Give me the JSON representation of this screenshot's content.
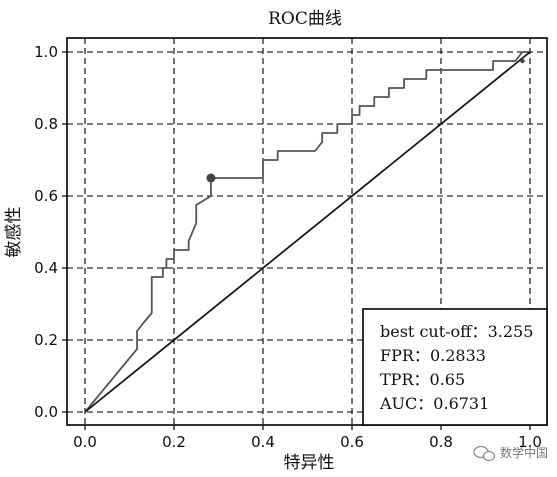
{
  "chart_data": {
    "type": "line",
    "title": "ROC曲线",
    "xlabel": "特异性",
    "ylabel": "敏感性",
    "xlim": [
      0,
      1
    ],
    "ylim": [
      0,
      1
    ],
    "x_ticks": [
      "0.0",
      "0.2",
      "0.4",
      "0.6",
      "0.8",
      "1.0"
    ],
    "y_ticks": [
      "0.0",
      "0.2",
      "0.4",
      "0.6",
      "0.8",
      "1.0"
    ],
    "grid": true,
    "grid_style": "dashed",
    "series": [
      {
        "color": "#555555",
        "x": [
          0.0,
          0.117,
          0.117,
          0.133,
          0.15,
          0.15,
          0.175,
          0.175,
          0.183,
          0.183,
          0.2,
          0.2,
          0.233,
          0.233,
          0.25,
          0.25,
          0.283,
          0.283,
          0.283,
          0.3,
          0.4,
          0.4,
          0.433,
          0.433,
          0.517,
          0.533,
          0.533,
          0.567,
          0.567,
          0.6,
          0.6,
          0.617,
          0.617,
          0.65,
          0.65,
          0.683,
          0.683,
          0.717,
          0.717,
          0.75,
          0.767,
          0.767,
          0.817,
          0.817,
          0.85,
          0.85,
          0.917,
          0.917,
          0.967,
          0.967,
          0.983,
          1.0
        ],
        "y": [
          0.0,
          0.175,
          0.225,
          0.25,
          0.275,
          0.375,
          0.375,
          0.4,
          0.4,
          0.425,
          0.425,
          0.45,
          0.45,
          0.475,
          0.525,
          0.575,
          0.6,
          0.65,
          0.65,
          0.65,
          0.65,
          0.7,
          0.7,
          0.725,
          0.725,
          0.75,
          0.775,
          0.775,
          0.8,
          0.8,
          0.825,
          0.825,
          0.85,
          0.85,
          0.875,
          0.875,
          0.9,
          0.9,
          0.925,
          0.925,
          0.925,
          0.95,
          0.95,
          0.95,
          0.95,
          0.95,
          0.95,
          0.975,
          0.975,
          0.975,
          1.0,
          1.0
        ]
      },
      {
        "color": "#111111",
        "x": [
          0.0,
          1.0
        ],
        "y": [
          0.0,
          1.0
        ]
      }
    ],
    "points": [
      {
        "x": 0.283,
        "y": 0.65,
        "color": "#444444",
        "shape": "circle"
      },
      {
        "x": 0.983,
        "y": 0.975,
        "color": "#444444",
        "shape": "dot"
      }
    ],
    "legend": {
      "placement": "bottom-right",
      "entries": [
        {
          "label": "best cut-off",
          "value": "3.255"
        },
        {
          "label": "FPR",
          "value": "0.2833"
        },
        {
          "label": "TPR",
          "value": "0.65"
        },
        {
          "label": "AUC",
          "value": "0.6731"
        }
      ],
      "separator": "："
    }
  },
  "watermark": {
    "icon": "wechat-icon",
    "text": "数学中国"
  }
}
